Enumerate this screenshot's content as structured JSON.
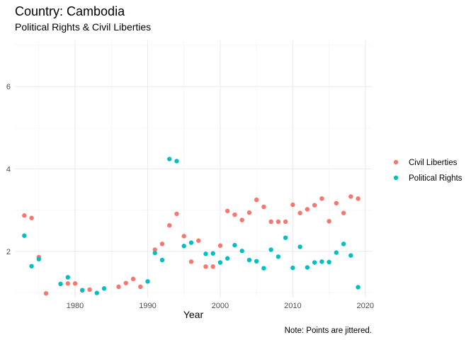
{
  "title": "Country: Cambodia",
  "subtitle": "Political Rights & Civil Liberties",
  "caption": "Note: Points are jittered.",
  "chart_data": {
    "type": "scatter",
    "xlabel": "Year",
    "ylabel": "",
    "xlim": [
      1971.7,
      2020.9
    ],
    "ylim": [
      0.88,
      7.12
    ],
    "x_ticks": [
      1980,
      1990,
      2000,
      2010,
      2020
    ],
    "x_minor_ticks": [
      1975,
      1985,
      1995,
      2005,
      2015
    ],
    "y_ticks": [
      2,
      4,
      6
    ],
    "y_minor_ticks": [
      1,
      3,
      5,
      7
    ],
    "grid": true,
    "legend_position": "right",
    "series": [
      {
        "name": "Civil Liberties",
        "color": "#F8766D",
        "points": [
          [
            1973.0,
            2.87
          ],
          [
            1974.0,
            2.81
          ],
          [
            1975.0,
            1.86
          ],
          [
            1976.0,
            0.98
          ],
          [
            1979.0,
            1.22
          ],
          [
            1980.0,
            1.22
          ],
          [
            1981.0,
            1.05
          ],
          [
            1982.0,
            1.07
          ],
          [
            1986.0,
            1.14
          ],
          [
            1987.0,
            1.23
          ],
          [
            1988.0,
            1.33
          ],
          [
            1989.0,
            1.14
          ],
          [
            1991.0,
            2.04
          ],
          [
            1992.0,
            2.18
          ],
          [
            1993.0,
            2.63
          ],
          [
            1994.0,
            2.91
          ],
          [
            1995.0,
            2.37
          ],
          [
            1996.0,
            1.75
          ],
          [
            1997.0,
            2.26
          ],
          [
            1998.0,
            1.63
          ],
          [
            1999.0,
            1.63
          ],
          [
            2000.0,
            2.14
          ],
          [
            2001.0,
            2.98
          ],
          [
            2002.0,
            2.89
          ],
          [
            2003.0,
            2.76
          ],
          [
            2004.0,
            2.94
          ],
          [
            2005.0,
            3.25
          ],
          [
            2006.0,
            3.08
          ],
          [
            2007.0,
            2.72
          ],
          [
            2008.0,
            2.72
          ],
          [
            2009.0,
            2.72
          ],
          [
            2010.0,
            3.13
          ],
          [
            2011.0,
            2.93
          ],
          [
            2012.0,
            3.02
          ],
          [
            2013.0,
            3.12
          ],
          [
            2014.0,
            3.28
          ],
          [
            2015.0,
            2.73
          ],
          [
            2016.0,
            3.17
          ],
          [
            2017.0,
            2.93
          ],
          [
            2018.0,
            3.33
          ],
          [
            2019.0,
            3.28
          ]
        ]
      },
      {
        "name": "Political Rights",
        "color": "#00BFC4",
        "points": [
          [
            1973.0,
            2.38
          ],
          [
            1974.0,
            1.64
          ],
          [
            1975.0,
            1.81
          ],
          [
            1978.0,
            1.21
          ],
          [
            1979.0,
            1.37
          ],
          [
            1981.0,
            1.06
          ],
          [
            1983.0,
            0.99
          ],
          [
            1984.0,
            1.1
          ],
          [
            1990.0,
            1.27
          ],
          [
            1991.0,
            1.96
          ],
          [
            1992.0,
            1.79
          ],
          [
            1993.0,
            4.24
          ],
          [
            1994.0,
            4.19
          ],
          [
            1995.0,
            2.13
          ],
          [
            1996.0,
            2.21
          ],
          [
            1998.0,
            1.94
          ],
          [
            1999.0,
            1.95
          ],
          [
            2000.0,
            1.73
          ],
          [
            2001.0,
            1.83
          ],
          [
            2002.0,
            2.15
          ],
          [
            2003.0,
            2.01
          ],
          [
            2004.0,
            1.79
          ],
          [
            2005.0,
            1.76
          ],
          [
            2006.0,
            1.59
          ],
          [
            2007.0,
            2.04
          ],
          [
            2008.0,
            1.87
          ],
          [
            2009.0,
            2.33
          ],
          [
            2010.0,
            1.6
          ],
          [
            2011.0,
            2.11
          ],
          [
            2012.0,
            1.61
          ],
          [
            2013.0,
            1.73
          ],
          [
            2014.0,
            1.75
          ],
          [
            2015.0,
            1.74
          ],
          [
            2016.0,
            1.97
          ],
          [
            2017.0,
            2.18
          ],
          [
            2018.0,
            1.9
          ],
          [
            2019.0,
            1.13
          ]
        ]
      }
    ]
  }
}
